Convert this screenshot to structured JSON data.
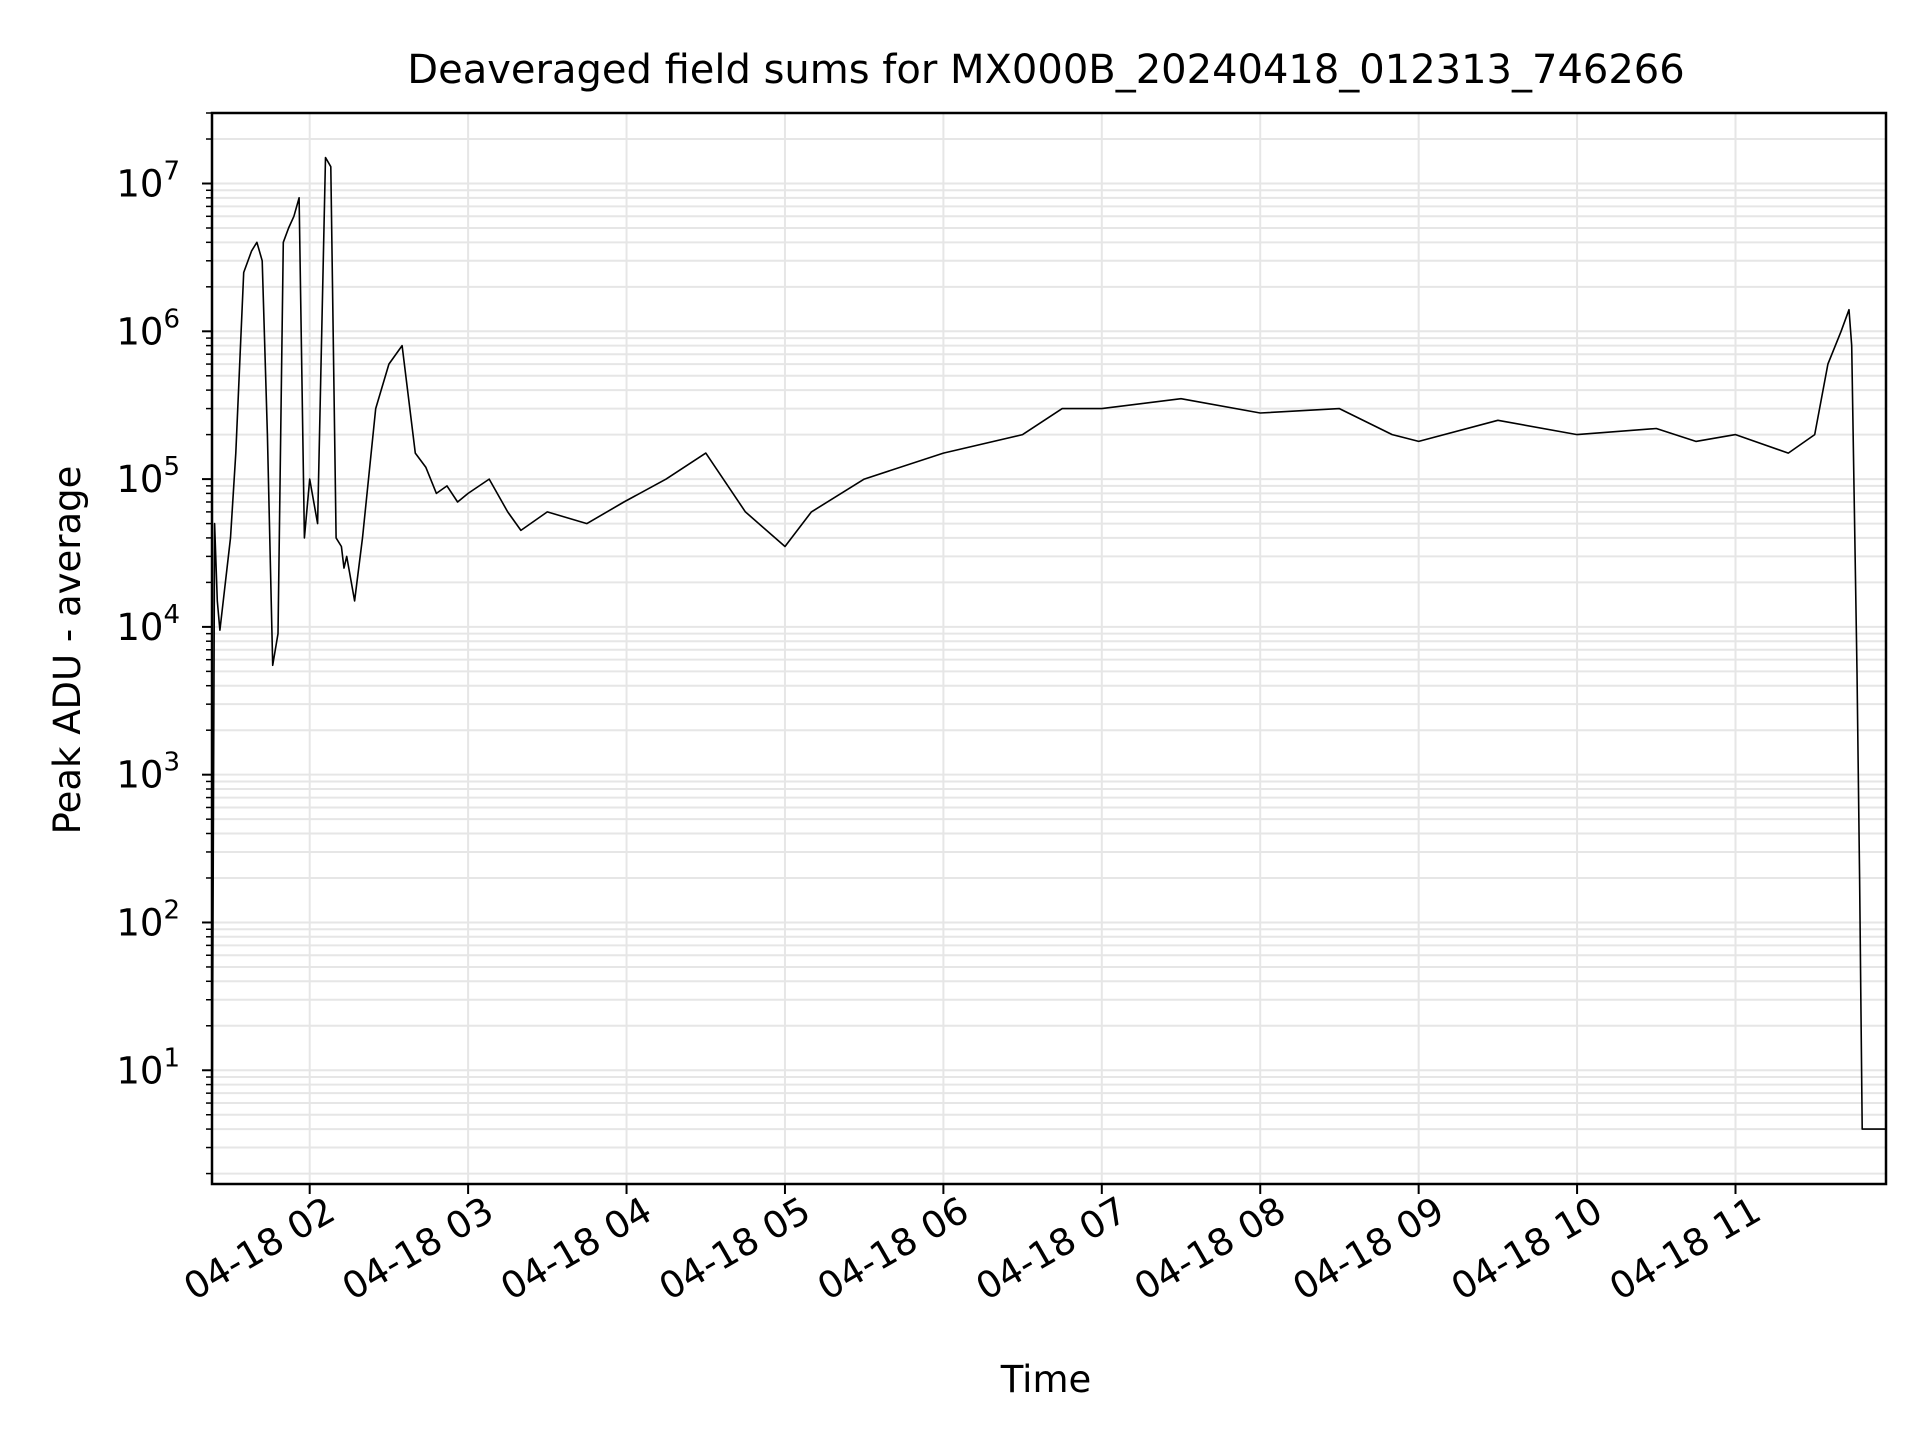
{
  "chart_data": {
    "type": "line",
    "title": "Deaveraged field sums for MX000B_20240418_012313_746266",
    "xlabel": "Time",
    "ylabel": "Peak ADU - average",
    "y_scale": "log",
    "ylim": [
      1.7,
      30000000
    ],
    "xlim": [
      "2024-04-18 01:23",
      "2024-04-18 11:57"
    ],
    "grid": true,
    "grid_minor": true,
    "line_color": "#000000",
    "grid_color": "#e6e6e6",
    "x_ticks": [
      {
        "value": "2024-04-18 02:00",
        "label": "04-18 02"
      },
      {
        "value": "2024-04-18 03:00",
        "label": "04-18 03"
      },
      {
        "value": "2024-04-18 04:00",
        "label": "04-18 04"
      },
      {
        "value": "2024-04-18 05:00",
        "label": "04-18 05"
      },
      {
        "value": "2024-04-18 06:00",
        "label": "04-18 06"
      },
      {
        "value": "2024-04-18 07:00",
        "label": "04-18 07"
      },
      {
        "value": "2024-04-18 08:00",
        "label": "04-18 08"
      },
      {
        "value": "2024-04-18 09:00",
        "label": "04-18 09"
      },
      {
        "value": "2024-04-18 10:00",
        "label": "04-18 10"
      },
      {
        "value": "2024-04-18 11:00",
        "label": "04-18 11"
      }
    ],
    "y_ticks": [
      {
        "value": 10,
        "base": "10",
        "exp": "1"
      },
      {
        "value": 100,
        "base": "10",
        "exp": "2"
      },
      {
        "value": 1000,
        "base": "10",
        "exp": "3"
      },
      {
        "value": 10000,
        "base": "10",
        "exp": "4"
      },
      {
        "value": 100000,
        "base": "10",
        "exp": "5"
      },
      {
        "value": 1000000,
        "base": "10",
        "exp": "6"
      },
      {
        "value": 10000000,
        "base": "10",
        "exp": "7"
      }
    ],
    "series": [
      {
        "x": [
          "2024-04-18 01:23",
          "2024-04-18 01:24",
          "2024-04-18 01:25",
          "2024-04-18 01:26",
          "2024-04-18 01:30",
          "2024-04-18 01:32",
          "2024-04-18 01:35",
          "2024-04-18 01:38",
          "2024-04-18 01:40",
          "2024-04-18 01:42",
          "2024-04-18 01:44",
          "2024-04-18 01:46",
          "2024-04-18 01:48",
          "2024-04-18 01:50",
          "2024-04-18 01:52",
          "2024-04-18 01:54",
          "2024-04-18 01:56",
          "2024-04-18 01:58",
          "2024-04-18 02:00",
          "2024-04-18 02:03",
          "2024-04-18 02:06",
          "2024-04-18 02:08",
          "2024-04-18 02:10",
          "2024-04-18 02:12",
          "2024-04-18 02:13",
          "2024-04-18 02:14",
          "2024-04-18 02:17",
          "2024-04-18 02:20",
          "2024-04-18 02:25",
          "2024-04-18 02:30",
          "2024-04-18 02:35",
          "2024-04-18 02:40",
          "2024-04-18 02:44",
          "2024-04-18 02:48",
          "2024-04-18 02:52",
          "2024-04-18 02:56",
          "2024-04-18 03:00",
          "2024-04-18 03:08",
          "2024-04-18 03:15",
          "2024-04-18 03:20",
          "2024-04-18 03:30",
          "2024-04-18 03:45",
          "2024-04-18 03:59",
          "2024-04-18 04:15",
          "2024-04-18 04:30",
          "2024-04-18 04:45",
          "2024-04-18 05:00",
          "2024-04-18 05:10",
          "2024-04-18 05:30",
          "2024-04-18 06:00",
          "2024-04-18 06:30",
          "2024-04-18 06:45",
          "2024-04-18 07:00",
          "2024-04-18 07:30",
          "2024-04-18 08:00",
          "2024-04-18 08:30",
          "2024-04-18 08:50",
          "2024-04-18 09:00",
          "2024-04-18 09:30",
          "2024-04-18 10:00",
          "2024-04-18 10:30",
          "2024-04-18 10:45",
          "2024-04-18 11:00",
          "2024-04-18 11:20",
          "2024-04-18 11:30",
          "2024-04-18 11:35",
          "2024-04-18 11:40",
          "2024-04-18 11:43",
          "2024-04-18 11:44",
          "2024-04-18 11:46",
          "2024-04-18 11:47",
          "2024-04-18 11:48",
          "2024-04-18 11:50",
          "2024-04-18 11:57"
        ],
        "y": [
          2,
          50000,
          15000,
          9500,
          40000,
          150000,
          2500000,
          3500000,
          4000000,
          3000000,
          200000,
          5500,
          9000,
          4000000,
          5000000,
          6000000,
          8000000,
          40000,
          100000,
          50000,
          15000000,
          13000000,
          40000,
          35000,
          25000,
          30000,
          15000,
          40000,
          300000,
          600000,
          800000,
          150000,
          120000,
          80000,
          90000,
          70000,
          80000,
          100000,
          60000,
          45000,
          60000,
          50000,
          70000,
          100000,
          150000,
          60000,
          35000,
          60000,
          100000,
          150000,
          200000,
          300000,
          300000,
          350000,
          280000,
          300000,
          200000,
          180000,
          250000,
          200000,
          220000,
          180000,
          200000,
          150000,
          200000,
          600000,
          1000000,
          1400000,
          800000,
          5000,
          200,
          4,
          4,
          4
        ]
      }
    ]
  }
}
